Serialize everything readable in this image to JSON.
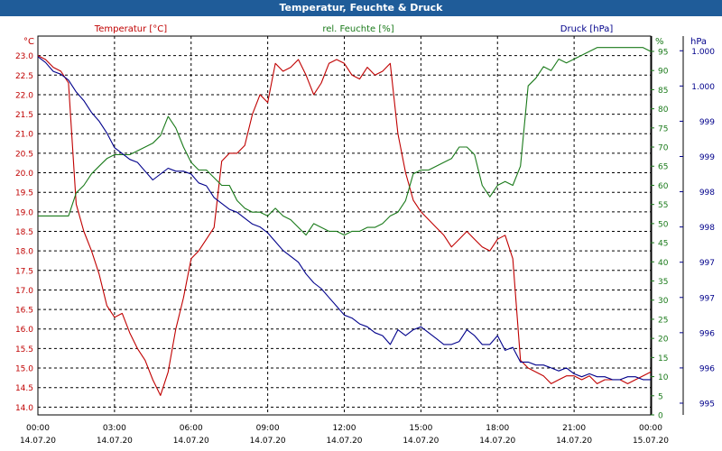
{
  "window_title": "Temperatur, Feuchte & Druck",
  "colors": {
    "temperature": "#c00000",
    "humidity": "#1a7a1a",
    "pressure": "#00008b",
    "grid": "#000000"
  },
  "chart_data": {
    "type": "line",
    "grid": true,
    "x_ticks": [
      {
        "time": "00:00",
        "date": "14.07.20"
      },
      {
        "time": "03:00",
        "date": "14.07.20"
      },
      {
        "time": "06:00",
        "date": "14.07.20"
      },
      {
        "time": "09:00",
        "date": "14.07.20"
      },
      {
        "time": "12:00",
        "date": "14.07.20"
      },
      {
        "time": "15:00",
        "date": "14.07.20"
      },
      {
        "time": "18:00",
        "date": "14.07.20"
      },
      {
        "time": "21:00",
        "date": "14.07.20"
      },
      {
        "time": "00:00",
        "date": "15.07.20"
      }
    ],
    "x_range_hours": [
      0,
      24
    ],
    "axes": {
      "temperature": {
        "title": "Temperatur [°C]",
        "unit": "°C",
        "ylim": [
          13.8,
          23.5
        ],
        "ticks": [
          "14.0",
          "14.5",
          "15.0",
          "15.5",
          "16.0",
          "16.5",
          "17.0",
          "17.5",
          "18.0",
          "18.5",
          "19.0",
          "19.5",
          "20.0",
          "20.5",
          "21.0",
          "21.5",
          "22.0",
          "22.5",
          "23.0"
        ]
      },
      "humidity": {
        "title": "rel. Feuchte [%]",
        "unit": "%",
        "ylim": [
          0,
          99
        ],
        "ticks": [
          "0",
          "5",
          "10",
          "15",
          "20",
          "25",
          "30",
          "35",
          "40",
          "45",
          "50",
          "55",
          "60",
          "65",
          "70",
          "75",
          "80",
          "85",
          "90",
          "95"
        ]
      },
      "pressure": {
        "title": "Druck [hPa]",
        "unit": "hPa",
        "ylim": [
          994.8,
          1001.25
        ],
        "ticks": [
          "995",
          "996",
          "996",
          "997",
          "997",
          "998",
          "998",
          "999",
          "999",
          "1.000",
          "1.000"
        ]
      }
    },
    "series": [
      {
        "name": "Temperatur [°C]",
        "axis": "temperature",
        "x": [
          0,
          0.3,
          0.6,
          0.9,
          1.2,
          1.5,
          1.8,
          2.1,
          2.4,
          2.7,
          3.0,
          3.3,
          3.6,
          3.9,
          4.2,
          4.5,
          4.8,
          5.1,
          5.4,
          5.7,
          6.0,
          6.3,
          6.6,
          6.9,
          7.2,
          7.5,
          7.8,
          8.1,
          8.4,
          8.7,
          9.0,
          9.3,
          9.6,
          9.9,
          10.2,
          10.5,
          10.8,
          11.1,
          11.4,
          11.7,
          12.0,
          12.3,
          12.6,
          12.9,
          13.2,
          13.5,
          13.8,
          14.1,
          14.4,
          14.7,
          15.0,
          15.3,
          15.6,
          15.9,
          16.2,
          16.5,
          16.8,
          17.1,
          17.4,
          17.7,
          18.0,
          18.3,
          18.6,
          18.9,
          19.2,
          19.5,
          19.8,
          20.1,
          20.4,
          20.7,
          21.0,
          21.3,
          21.6,
          21.9,
          22.2,
          22.5,
          22.8,
          23.1,
          23.4,
          23.7,
          24.0
        ],
        "values": [
          23.0,
          22.9,
          22.7,
          22.6,
          22.3,
          19.2,
          18.5,
          18.0,
          17.4,
          16.6,
          16.3,
          16.4,
          15.9,
          15.5,
          15.2,
          14.7,
          14.3,
          14.9,
          16.0,
          16.8,
          17.8,
          18.0,
          18.3,
          18.6,
          20.3,
          20.5,
          20.5,
          20.7,
          21.5,
          22.0,
          21.8,
          22.8,
          22.6,
          22.7,
          22.9,
          22.5,
          22.0,
          22.3,
          22.8,
          22.9,
          22.8,
          22.5,
          22.4,
          22.7,
          22.5,
          22.6,
          22.8,
          21.0,
          20.0,
          19.3,
          19.0,
          18.8,
          18.6,
          18.4,
          18.1,
          18.3,
          18.5,
          18.3,
          18.1,
          18.0,
          18.3,
          18.4,
          17.8,
          15.2,
          15.0,
          14.9,
          14.8,
          14.6,
          14.7,
          14.8,
          14.8,
          14.7,
          14.8,
          14.6,
          14.7,
          14.7,
          14.7,
          14.6,
          14.7,
          14.8,
          14.9
        ]
      },
      {
        "name": "rel. Feuchte [%]",
        "axis": "humidity",
        "x": [
          0,
          0.3,
          0.6,
          0.9,
          1.2,
          1.5,
          1.8,
          2.1,
          2.4,
          2.7,
          3.0,
          3.3,
          3.6,
          3.9,
          4.2,
          4.5,
          4.8,
          5.1,
          5.4,
          5.7,
          6.0,
          6.3,
          6.6,
          6.9,
          7.2,
          7.5,
          7.8,
          8.1,
          8.4,
          8.7,
          9.0,
          9.3,
          9.6,
          9.9,
          10.2,
          10.5,
          10.8,
          11.1,
          11.4,
          11.7,
          12.0,
          12.3,
          12.6,
          12.9,
          13.2,
          13.5,
          13.8,
          14.1,
          14.4,
          14.7,
          15.0,
          15.3,
          15.6,
          15.9,
          16.2,
          16.5,
          16.8,
          17.1,
          17.4,
          17.7,
          18.0,
          18.3,
          18.6,
          18.9,
          19.2,
          19.5,
          19.8,
          20.1,
          20.4,
          20.7,
          21.0,
          21.3,
          21.6,
          21.9,
          22.2,
          22.5,
          22.8,
          23.1,
          23.4,
          23.7,
          24.0
        ],
        "values": [
          52,
          52,
          52,
          52,
          52,
          58,
          60,
          63,
          65,
          67,
          68,
          68,
          68,
          69,
          70,
          71,
          73,
          78,
          75,
          70,
          66,
          64,
          64,
          62,
          60,
          60,
          56,
          54,
          53,
          53,
          52,
          54,
          52,
          51,
          49,
          47,
          50,
          49,
          48,
          48,
          47,
          48,
          48,
          49,
          49,
          50,
          52,
          53,
          56,
          63,
          64,
          64,
          65,
          66,
          67,
          70,
          70,
          68,
          60,
          57,
          60,
          61,
          60,
          65,
          86,
          88,
          91,
          90,
          93,
          92,
          93,
          94,
          95,
          96,
          96,
          96,
          96,
          96,
          96,
          96,
          95
        ]
      },
      {
        "name": "Druck [hPa]",
        "axis": "pressure",
        "x": [
          0,
          0.3,
          0.6,
          0.9,
          1.2,
          1.5,
          1.8,
          2.1,
          2.4,
          2.7,
          3.0,
          3.3,
          3.6,
          3.9,
          4.2,
          4.5,
          4.8,
          5.1,
          5.4,
          5.7,
          6.0,
          6.3,
          6.6,
          6.9,
          7.2,
          7.5,
          7.8,
          8.1,
          8.4,
          8.7,
          9.0,
          9.3,
          9.6,
          9.9,
          10.2,
          10.5,
          10.8,
          11.1,
          11.4,
          11.7,
          12.0,
          12.3,
          12.6,
          12.9,
          13.2,
          13.5,
          13.8,
          14.1,
          14.4,
          14.7,
          15.0,
          15.3,
          15.6,
          15.9,
          16.2,
          16.5,
          16.8,
          17.1,
          17.4,
          17.7,
          18.0,
          18.3,
          18.6,
          18.9,
          19.2,
          19.5,
          19.8,
          20.1,
          20.4,
          20.7,
          21.0,
          21.3,
          21.6,
          21.9,
          22.2,
          22.5,
          22.8,
          23.1,
          23.4,
          23.7,
          24.0
        ],
        "values": [
          1000.9,
          1000.8,
          1000.65,
          1000.6,
          1000.5,
          1000.3,
          1000.15,
          999.95,
          999.8,
          999.6,
          999.35,
          999.25,
          999.15,
          999.1,
          998.95,
          998.8,
          998.9,
          999.0,
          998.95,
          998.95,
          998.9,
          998.75,
          998.7,
          998.5,
          998.4,
          998.3,
          998.25,
          998.15,
          998.05,
          998.0,
          997.9,
          997.75,
          997.6,
          997.5,
          997.4,
          997.2,
          997.05,
          996.95,
          996.8,
          996.65,
          996.5,
          996.45,
          996.35,
          996.3,
          996.2,
          996.15,
          996.0,
          996.25,
          996.15,
          996.25,
          996.3,
          996.2,
          996.1,
          996.0,
          996.0,
          996.05,
          996.25,
          996.15,
          996.0,
          996.0,
          996.15,
          995.9,
          995.95,
          995.7,
          995.7,
          995.65,
          995.65,
          995.6,
          995.55,
          995.6,
          995.5,
          995.45,
          995.5,
          995.45,
          995.45,
          995.4,
          995.4,
          995.45,
          995.45,
          995.4,
          995.4
        ]
      }
    ]
  }
}
